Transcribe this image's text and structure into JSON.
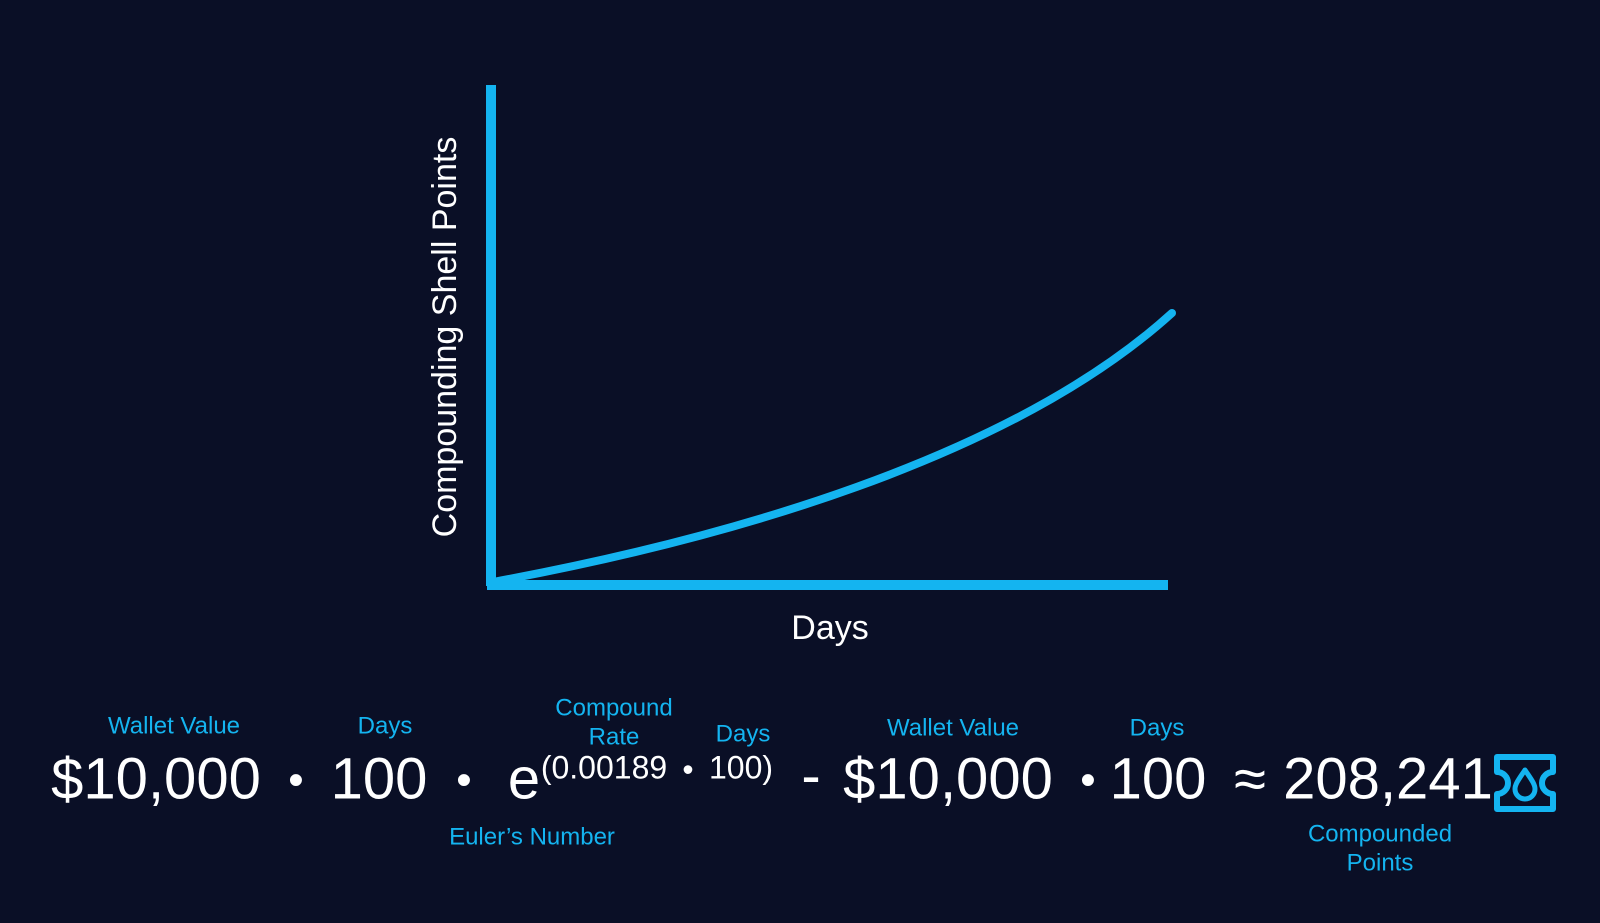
{
  "graph": {
    "y_axis_label": "Compounding Shell Points",
    "x_axis_label": "Days"
  },
  "formula": {
    "terms": [
      "$10,000",
      "•",
      "100",
      "•",
      "e",
      "(0.00189",
      "•",
      "100)",
      "-",
      "$10,000",
      "•",
      "100",
      "≈",
      "208,241"
    ],
    "labels": [
      [
        "Wallet Value"
      ],
      [
        "Days"
      ],
      [
        "Compound",
        "Rate"
      ],
      [
        "Days"
      ],
      [
        "Euler’s Number"
      ],
      [
        "Wallet Value"
      ],
      [
        "Days"
      ],
      [
        "Compounded",
        "Points"
      ]
    ]
  }
}
